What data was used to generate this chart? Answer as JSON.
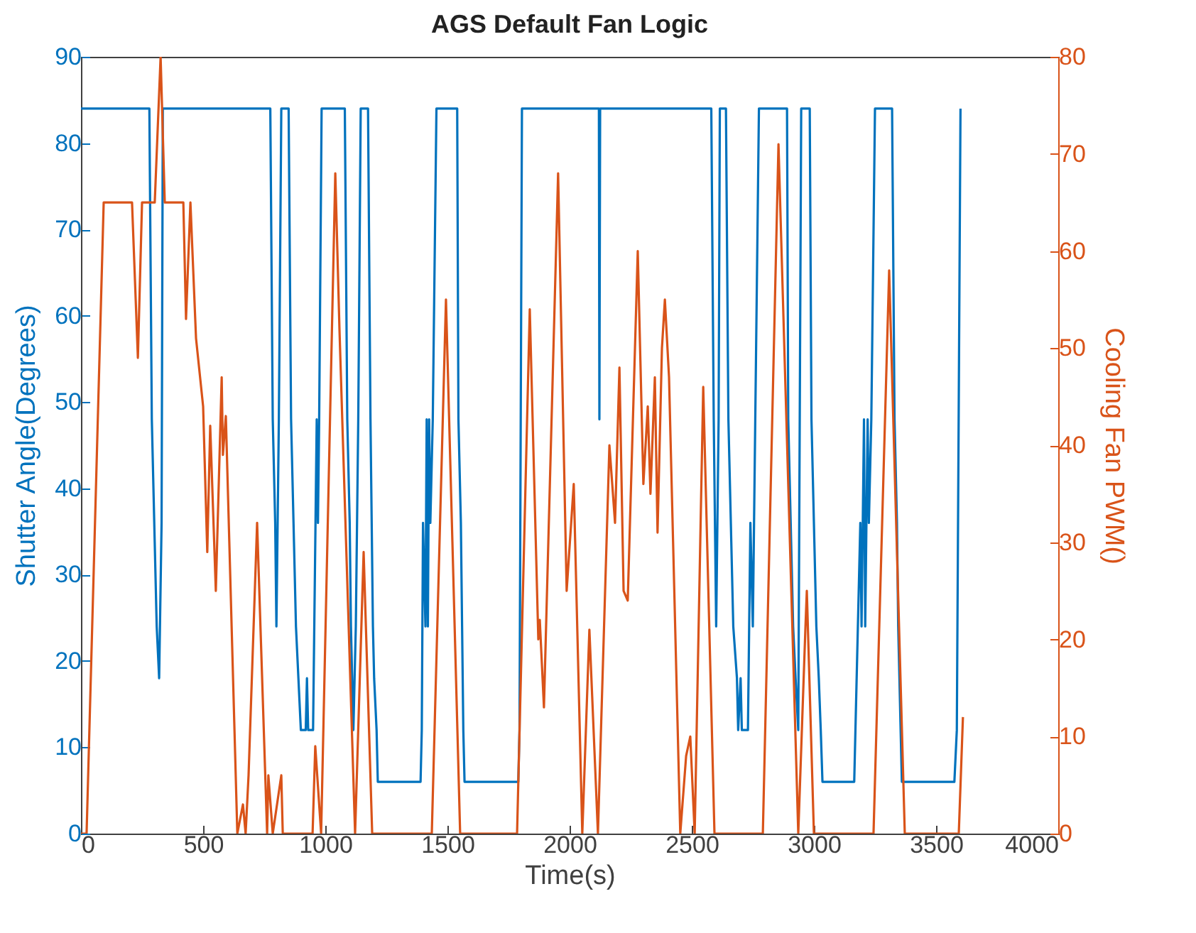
{
  "chart_data": {
    "type": "line",
    "title": "AGS Default Fan Logic",
    "xlabel": "Time(s)",
    "ylabel": "Shutter Angle(Degrees)",
    "y2label": "Cooling Fan PWM()",
    "xlim": [
      0,
      4000
    ],
    "xticks": [
      0,
      500,
      1000,
      1500,
      2000,
      2500,
      3000,
      3500,
      4000
    ],
    "ylim": [
      0,
      90
    ],
    "yticks": [
      0,
      10,
      20,
      30,
      40,
      50,
      60,
      70,
      80,
      90
    ],
    "y2lim": [
      0,
      80
    ],
    "y2ticks": [
      0,
      10,
      20,
      30,
      40,
      50,
      60,
      70,
      80
    ],
    "series": [
      {
        "color": "#0072bd",
        "x": [
          0,
          280,
          290,
          300,
          310,
          320,
          330,
          335,
          775,
          785,
          795,
          800,
          810,
          820,
          850,
          860,
          870,
          880,
          890,
          900,
          920,
          925,
          930,
          950,
          960,
          965,
          970,
          975,
          985,
          1080,
          1090,
          1100,
          1105,
          1115,
          1125,
          1135,
          1145,
          1175,
          1185,
          1190,
          1195,
          1200,
          1210,
          1215,
          1390,
          1395,
          1400,
          1410,
          1415,
          1420,
          1425,
          1430,
          1440,
          1455,
          1540,
          1545,
          1555,
          1560,
          1565,
          1570,
          1790,
          1795,
          1805,
          2120,
          2122,
          2125,
          2580,
          2590,
          2595,
          2600,
          2610,
          2615,
          2640,
          2650,
          2660,
          2670,
          2685,
          2690,
          2700,
          2705,
          2730,
          2740,
          2750,
          2755,
          2760,
          2775,
          2890,
          2895,
          2905,
          2915,
          2925,
          2936,
          2942,
          2948,
          2983,
          2990,
          3000,
          3010,
          3020,
          3028,
          3035,
          3165,
          3170,
          3190,
          3195,
          3205,
          3210,
          3220,
          3225,
          3235,
          3250,
          3320,
          3330,
          3340,
          3345,
          3350,
          3355,
          3360,
          3575,
          3585,
          3600
        ],
        "values": [
          84,
          84,
          48,
          36,
          24,
          18,
          36,
          84,
          84,
          48,
          36,
          24,
          48,
          84,
          84,
          48,
          36,
          24,
          18,
          12,
          12,
          18,
          12,
          12,
          36,
          48,
          36,
          48,
          84,
          84,
          48,
          36,
          24,
          12,
          24,
          48,
          84,
          84,
          48,
          36,
          24,
          18,
          12,
          6,
          6,
          12,
          36,
          24,
          48,
          24,
          48,
          36,
          48,
          84,
          84,
          48,
          36,
          24,
          12,
          6,
          6,
          12,
          84,
          84,
          48,
          84,
          84,
          48,
          36,
          24,
          48,
          84,
          84,
          48,
          36,
          24,
          18,
          12,
          18,
          12,
          12,
          36,
          24,
          36,
          48,
          84,
          84,
          48,
          36,
          24,
          18,
          12,
          48,
          84,
          84,
          48,
          36,
          24,
          18,
          12,
          6,
          6,
          12,
          36,
          24,
          48,
          24,
          48,
          36,
          48,
          84,
          84,
          48,
          36,
          24,
          18,
          12,
          6,
          6,
          12,
          84
        ]
      },
      {
        "color": "#d95319",
        "axis": "y2",
        "x": [
          0,
          23,
          93,
          209,
          233,
          250,
          302,
          326,
          343,
          419,
          430,
          448,
          471,
          500,
          517,
          529,
          552,
          576,
          581,
          593,
          640,
          663,
          674,
          686,
          721,
          762,
          767,
          785,
          820,
          826,
          948,
          959,
          983,
          1041,
          1058,
          1122,
          1157,
          1192,
          1436,
          1494,
          1552,
          1785,
          1837,
          1872,
          1878,
          1895,
          1953,
          1988,
          2017,
          2052,
          2081,
          2116,
          2163,
          2186,
          2204,
          2221,
          2238,
          2279,
          2302,
          2320,
          2331,
          2349,
          2360,
          2378,
          2390,
          2407,
          2453,
          2477,
          2494,
          2512,
          2547,
          2593,
          2791,
          2855,
          2936,
          2965,
          2971,
          3000,
          3244,
          3308,
          3372,
          3593,
          3610
        ],
        "values": [
          0,
          0,
          65,
          65,
          49,
          65,
          65,
          80,
          65,
          65,
          53,
          65,
          51,
          44,
          29,
          42,
          25,
          47,
          39,
          43,
          0,
          3,
          0,
          6,
          32,
          0,
          6,
          0,
          6,
          0,
          0,
          9,
          0,
          68,
          52,
          0,
          29,
          0,
          0,
          55,
          0,
          0,
          54,
          20,
          22,
          13,
          68,
          25,
          36,
          0,
          21,
          0,
          40,
          32,
          48,
          25,
          24,
          60,
          36,
          44,
          35,
          47,
          31,
          50,
          55,
          47,
          0,
          8,
          10,
          0,
          46,
          0,
          0,
          71,
          0,
          21,
          25,
          0,
          0,
          58,
          0,
          0,
          12
        ]
      }
    ]
  }
}
